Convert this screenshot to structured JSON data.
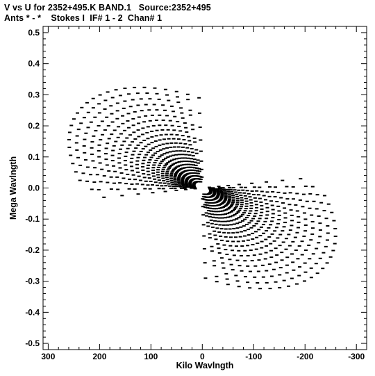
{
  "header": {
    "line1": "V vs U for 2352+495.K BAND.1   Source:2352+495",
    "line2": "Ants * - *    Stokes I  IF# 1 - 2  Chan# 1"
  },
  "chart_data": {
    "type": "scatter",
    "xlabel": "Kilo Wavlngth",
    "ylabel": "Mega Wavlngth",
    "xlim": [
      310,
      -320
    ],
    "ylim": [
      -0.52,
      0.52
    ],
    "x_ticks": [
      300,
      200,
      100,
      0,
      -100,
      -200,
      -300
    ],
    "x_tick_labels": [
      "300",
      "200",
      "100",
      "0",
      "-100",
      "-200",
      "-300"
    ],
    "y_ticks": [
      -0.5,
      -0.4,
      -0.3,
      -0.2,
      -0.1,
      0.0,
      0.1,
      0.2,
      0.3,
      0.4,
      0.5
    ],
    "y_tick_labels": [
      "-0.5",
      "-0.4",
      "-0.3",
      "-0.2",
      "-0.1",
      "0.0",
      "0.1",
      "0.2",
      "0.3",
      "0.4",
      "0.5"
    ],
    "grid": false,
    "marker_color": "#000000",
    "uv_model": {
      "description_of_points": "points are generated from baseline ellipse tracks; each track is symmetric (u,v) and (-u,-v)",
      "hour_angle_start_deg": -50,
      "hour_angle_end_deg": 62,
      "samples_per_track": 24,
      "tilt_deg": 28,
      "axis_ratio": 0.55,
      "tracks_kilo_wavelength": [
        18,
        26,
        34,
        42,
        50,
        58,
        66,
        75,
        84,
        94,
        104,
        115,
        126,
        138,
        150,
        163,
        176,
        190,
        204,
        219,
        234,
        250,
        266,
        282
      ]
    }
  }
}
